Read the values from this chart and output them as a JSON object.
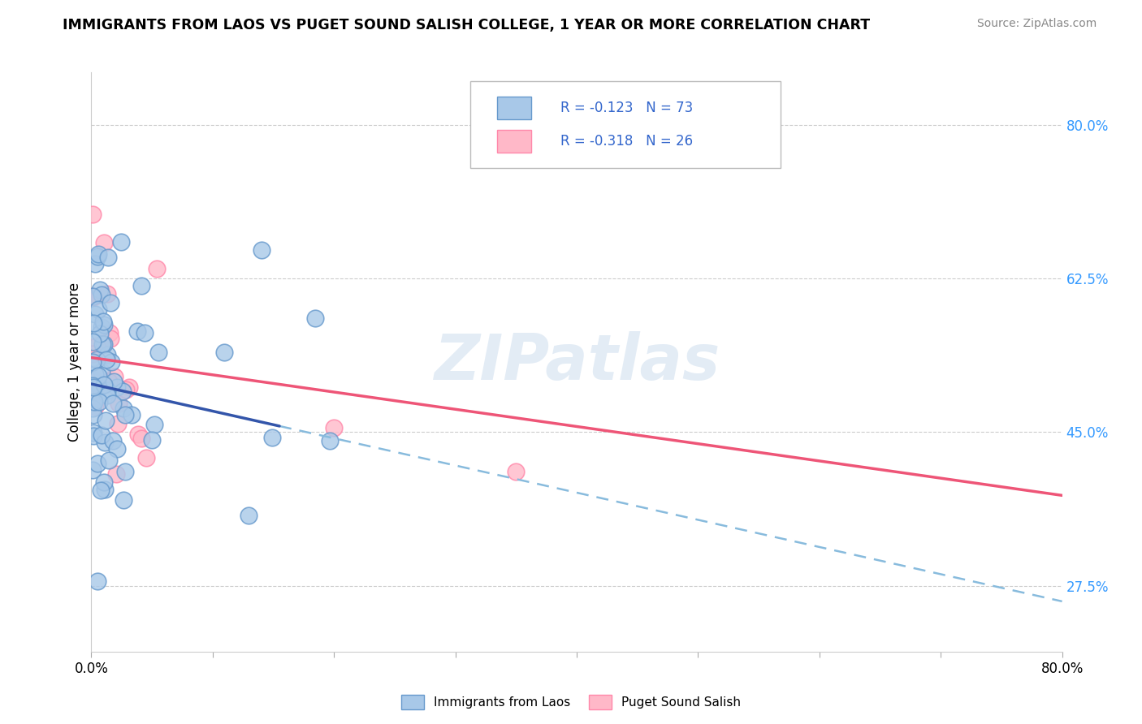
{
  "title": "IMMIGRANTS FROM LAOS VS PUGET SOUND SALISH COLLEGE, 1 YEAR OR MORE CORRELATION CHART",
  "source_text": "Source: ZipAtlas.com",
  "ylabel": "College, 1 year or more",
  "xlim": [
    0.0,
    0.8
  ],
  "ylim": [
    0.2,
    0.86
  ],
  "xticks": [
    0.0,
    0.1,
    0.2,
    0.3,
    0.4,
    0.5,
    0.6,
    0.7,
    0.8
  ],
  "xtick_labels": [
    "0.0%",
    "",
    "",
    "",
    "",
    "",
    "",
    "",
    "80.0%"
  ],
  "ytick_positions": [
    0.275,
    0.45,
    0.625,
    0.8
  ],
  "ytick_labels": [
    "27.5%",
    "45.0%",
    "62.5%",
    "80.0%"
  ],
  "blue_R": -0.123,
  "blue_N": 73,
  "pink_R": -0.318,
  "pink_N": 26,
  "blue_scatter_color": "#A8C8E8",
  "blue_edge_color": "#6699CC",
  "pink_scatter_color": "#FFB8C8",
  "pink_edge_color": "#FF88AA",
  "trend_blue": "#3355AA",
  "trend_pink": "#EE5577",
  "dashed_color": "#88BBDD",
  "legend_label_blue": "Immigrants from Laos",
  "legend_label_pink": "Puget Sound Salish",
  "watermark": "ZIPatlas",
  "blue_trend_x_start": 0.0,
  "blue_trend_x_solid_end": 0.155,
  "blue_trend_x_dash_end": 0.8,
  "blue_trend_y_start": 0.505,
  "blue_trend_y_solid_end": 0.457,
  "blue_trend_y_dash_end": 0.258,
  "pink_trend_x_start": 0.0,
  "pink_trend_x_end": 0.8,
  "pink_trend_y_start": 0.535,
  "pink_trend_y_end": 0.378
}
